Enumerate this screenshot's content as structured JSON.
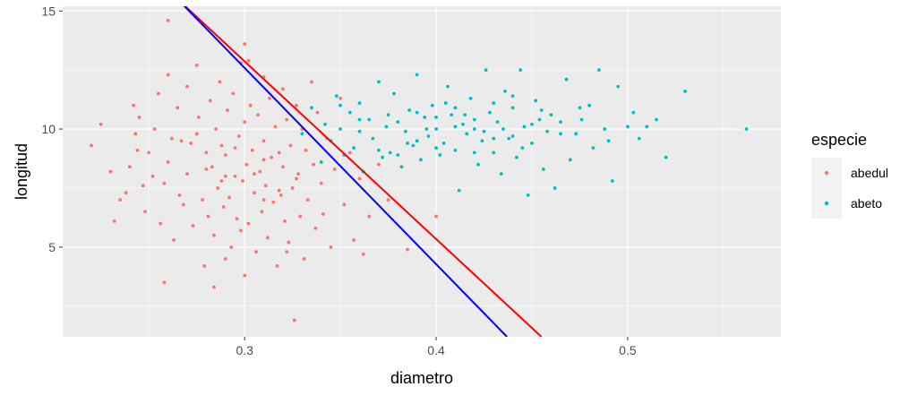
{
  "chart_data": {
    "type": "scatter",
    "xlabel": "diametro",
    "ylabel": "longitud",
    "xlim": [
      0.205,
      0.58
    ],
    "ylim": [
      1.2,
      15.2
    ],
    "x_ticks": [
      0.3,
      0.4,
      0.5
    ],
    "x_tick_labels": [
      "0.3",
      "0.4",
      "0.5"
    ],
    "y_ticks": [
      5,
      10,
      15
    ],
    "y_tick_labels": [
      "5",
      "10",
      "15"
    ],
    "grid": true,
    "panel_background": "#ebebeb",
    "legend": {
      "title": "especie",
      "position": "right",
      "entries": [
        "abedul",
        "abeto"
      ]
    },
    "series": [
      {
        "name": "abedul",
        "color": "#f8766d",
        "points": [
          [
            0.22,
            9.3
          ],
          [
            0.225,
            10.2
          ],
          [
            0.23,
            8.2
          ],
          [
            0.232,
            6.1
          ],
          [
            0.235,
            7.0
          ],
          [
            0.238,
            7.3
          ],
          [
            0.24,
            8.4
          ],
          [
            0.242,
            11.0
          ],
          [
            0.243,
            9.8
          ],
          [
            0.245,
            10.5
          ],
          [
            0.247,
            7.6
          ],
          [
            0.248,
            6.5
          ],
          [
            0.25,
            9.0
          ],
          [
            0.252,
            8.0
          ],
          [
            0.253,
            10.0
          ],
          [
            0.255,
            11.5
          ],
          [
            0.256,
            6.0
          ],
          [
            0.258,
            7.7
          ],
          [
            0.26,
            12.3
          ],
          [
            0.26,
            8.6
          ],
          [
            0.262,
            9.6
          ],
          [
            0.263,
            5.3
          ],
          [
            0.265,
            10.9
          ],
          [
            0.266,
            7.2
          ],
          [
            0.268,
            6.8
          ],
          [
            0.27,
            11.8
          ],
          [
            0.27,
            8.1
          ],
          [
            0.272,
            9.4
          ],
          [
            0.273,
            5.9
          ],
          [
            0.275,
            12.7
          ],
          [
            0.276,
            10.5
          ],
          [
            0.278,
            7.0
          ],
          [
            0.279,
            4.2
          ],
          [
            0.28,
            9.0
          ],
          [
            0.281,
            6.3
          ],
          [
            0.282,
            11.2
          ],
          [
            0.283,
            8.4
          ],
          [
            0.284,
            5.5
          ],
          [
            0.285,
            10.0
          ],
          [
            0.286,
            7.5
          ],
          [
            0.287,
            12.0
          ],
          [
            0.288,
            9.3
          ],
          [
            0.289,
            6.7
          ],
          [
            0.29,
            4.5
          ],
          [
            0.29,
            8.9
          ],
          [
            0.291,
            10.8
          ],
          [
            0.292,
            7.1
          ],
          [
            0.293,
            5.0
          ],
          [
            0.294,
            11.5
          ],
          [
            0.295,
            8.0
          ],
          [
            0.296,
            6.2
          ],
          [
            0.297,
            9.7
          ],
          [
            0.298,
            12.8
          ],
          [
            0.299,
            7.8
          ],
          [
            0.3,
            3.8
          ],
          [
            0.3,
            10.3
          ],
          [
            0.301,
            8.5
          ],
          [
            0.302,
            6.0
          ],
          [
            0.303,
            11.0
          ],
          [
            0.304,
            9.1
          ],
          [
            0.305,
            7.3
          ],
          [
            0.306,
            4.8
          ],
          [
            0.307,
            10.6
          ],
          [
            0.308,
            8.2
          ],
          [
            0.309,
            6.5
          ],
          [
            0.31,
            12.2
          ],
          [
            0.31,
            9.5
          ],
          [
            0.311,
            7.6
          ],
          [
            0.312,
            5.4
          ],
          [
            0.313,
            11.3
          ],
          [
            0.314,
            8.8
          ],
          [
            0.315,
            6.9
          ],
          [
            0.316,
            10.1
          ],
          [
            0.317,
            4.2
          ],
          [
            0.318,
            9.0
          ],
          [
            0.319,
            7.2
          ],
          [
            0.32,
            11.7
          ],
          [
            0.32,
            8.4
          ],
          [
            0.321,
            6.1
          ],
          [
            0.322,
            10.4
          ],
          [
            0.323,
            5.2
          ],
          [
            0.324,
            9.3
          ],
          [
            0.325,
            7.5
          ],
          [
            0.326,
            1.9
          ],
          [
            0.327,
            11.0
          ],
          [
            0.328,
            8.1
          ],
          [
            0.329,
            6.3
          ],
          [
            0.33,
            10.0
          ],
          [
            0.331,
            4.5
          ],
          [
            0.332,
            9.1
          ],
          [
            0.333,
            7.0
          ],
          [
            0.335,
            12.0
          ],
          [
            0.336,
            8.5
          ],
          [
            0.337,
            5.8
          ],
          [
            0.338,
            10.7
          ],
          [
            0.34,
            7.7
          ],
          [
            0.341,
            6.4
          ],
          [
            0.343,
            9.6
          ],
          [
            0.345,
            5.0
          ],
          [
            0.347,
            8.3
          ],
          [
            0.35,
            11.3
          ],
          [
            0.352,
            6.8
          ],
          [
            0.355,
            9.0
          ],
          [
            0.357,
            5.3
          ],
          [
            0.36,
            7.9
          ],
          [
            0.362,
            4.7
          ],
          [
            0.365,
            6.3
          ],
          [
            0.37,
            8.5
          ],
          [
            0.375,
            7.0
          ],
          [
            0.385,
            4.9
          ],
          [
            0.4,
            6.3
          ],
          [
            0.26,
            14.6
          ],
          [
            0.258,
            3.5
          ],
          [
            0.284,
            3.3
          ],
          [
            0.3,
            13.6
          ],
          [
            0.302,
            12.9
          ],
          [
            0.322,
            4.8
          ],
          [
            0.327,
            7.9
          ],
          [
            0.298,
            5.7
          ],
          [
            0.275,
            9.8
          ],
          [
            0.244,
            9.1
          ],
          [
            0.29,
            8.0
          ],
          [
            0.288,
            7.8
          ],
          [
            0.31,
            8.7
          ],
          [
            0.31,
            7.0
          ],
          [
            0.28,
            8.3
          ],
          [
            0.295,
            9.2
          ],
          [
            0.267,
            9.5
          ],
          [
            0.305,
            8.1
          ],
          [
            0.318,
            7.4
          ]
        ]
      },
      {
        "name": "abeto",
        "color": "#00bfc4",
        "points": [
          [
            0.33,
            9.8
          ],
          [
            0.335,
            10.9
          ],
          [
            0.34,
            8.6
          ],
          [
            0.342,
            10.2
          ],
          [
            0.345,
            9.5
          ],
          [
            0.348,
            11.4
          ],
          [
            0.35,
            10.0
          ],
          [
            0.352,
            8.9
          ],
          [
            0.355,
            10.7
          ],
          [
            0.357,
            9.2
          ],
          [
            0.36,
            11.1
          ],
          [
            0.362,
            8.2
          ],
          [
            0.365,
            10.4
          ],
          [
            0.367,
            9.6
          ],
          [
            0.37,
            12.0
          ],
          [
            0.372,
            8.8
          ],
          [
            0.374,
            10.1
          ],
          [
            0.376,
            9.0
          ],
          [
            0.378,
            11.5
          ],
          [
            0.38,
            10.3
          ],
          [
            0.382,
            8.4
          ],
          [
            0.384,
            9.9
          ],
          [
            0.386,
            10.8
          ],
          [
            0.388,
            9.3
          ],
          [
            0.39,
            12.3
          ],
          [
            0.392,
            8.7
          ],
          [
            0.394,
            10.5
          ],
          [
            0.396,
            9.7
          ],
          [
            0.398,
            11.0
          ],
          [
            0.4,
            10.0
          ],
          [
            0.402,
            8.9
          ],
          [
            0.404,
            9.4
          ],
          [
            0.406,
            11.8
          ],
          [
            0.408,
            10.6
          ],
          [
            0.41,
            9.1
          ],
          [
            0.412,
            7.4
          ],
          [
            0.414,
            10.2
          ],
          [
            0.416,
            9.8
          ],
          [
            0.418,
            11.3
          ],
          [
            0.42,
            10.0
          ],
          [
            0.422,
            8.5
          ],
          [
            0.424,
            9.5
          ],
          [
            0.426,
            12.5
          ],
          [
            0.428,
            10.7
          ],
          [
            0.43,
            9.0
          ],
          [
            0.432,
            10.3
          ],
          [
            0.434,
            8.1
          ],
          [
            0.436,
            11.6
          ],
          [
            0.438,
            9.6
          ],
          [
            0.44,
            10.9
          ],
          [
            0.442,
            8.8
          ],
          [
            0.444,
            12.5
          ],
          [
            0.446,
            10.1
          ],
          [
            0.448,
            7.2
          ],
          [
            0.45,
            9.4
          ],
          [
            0.452,
            11.2
          ],
          [
            0.454,
            10.4
          ],
          [
            0.456,
            8.3
          ],
          [
            0.458,
            9.9
          ],
          [
            0.46,
            10.6
          ],
          [
            0.462,
            7.5
          ],
          [
            0.465,
            10.3
          ],
          [
            0.468,
            12.1
          ],
          [
            0.47,
            8.7
          ],
          [
            0.473,
            9.8
          ],
          [
            0.476,
            10.4
          ],
          [
            0.48,
            11.0
          ],
          [
            0.482,
            9.2
          ],
          [
            0.485,
            12.5
          ],
          [
            0.488,
            10.0
          ],
          [
            0.49,
            9.5
          ],
          [
            0.492,
            7.8
          ],
          [
            0.495,
            11.8
          ],
          [
            0.5,
            10.1
          ],
          [
            0.503,
            10.7
          ],
          [
            0.506,
            9.6
          ],
          [
            0.51,
            10.1
          ],
          [
            0.515,
            10.4
          ],
          [
            0.52,
            8.8
          ],
          [
            0.53,
            11.6
          ],
          [
            0.562,
            10.0
          ],
          [
            0.37,
            9.1
          ],
          [
            0.38,
            8.9
          ],
          [
            0.39,
            9.5
          ],
          [
            0.4,
            10.5
          ],
          [
            0.41,
            10.1
          ],
          [
            0.42,
            9.0
          ],
          [
            0.43,
            11.1
          ],
          [
            0.44,
            9.7
          ],
          [
            0.45,
            10.2
          ],
          [
            0.35,
            11.0
          ],
          [
            0.36,
            9.9
          ],
          [
            0.375,
            10.6
          ],
          [
            0.385,
            9.4
          ],
          [
            0.395,
            10.0
          ],
          [
            0.405,
            11.1
          ],
          [
            0.415,
            10.6
          ],
          [
            0.425,
            9.9
          ],
          [
            0.435,
            10.0
          ],
          [
            0.445,
            9.2
          ],
          [
            0.455,
            10.8
          ],
          [
            0.465,
            9.8
          ],
          [
            0.475,
            10.9
          ],
          [
            0.39,
            10.7
          ],
          [
            0.4,
            9.2
          ],
          [
            0.41,
            10.9
          ],
          [
            0.42,
            10.4
          ],
          [
            0.43,
            9.6
          ],
          [
            0.44,
            11.4
          ],
          [
            0.36,
            10.4
          ]
        ]
      }
    ],
    "lines": [
      {
        "color": "#ff0000",
        "x": [
          0.265,
          0.455
        ],
        "y": [
          15.5,
          1.2
        ]
      },
      {
        "color": "#0000ff",
        "x": [
          0.265,
          0.437
        ],
        "y": [
          15.5,
          1.2
        ]
      }
    ]
  }
}
